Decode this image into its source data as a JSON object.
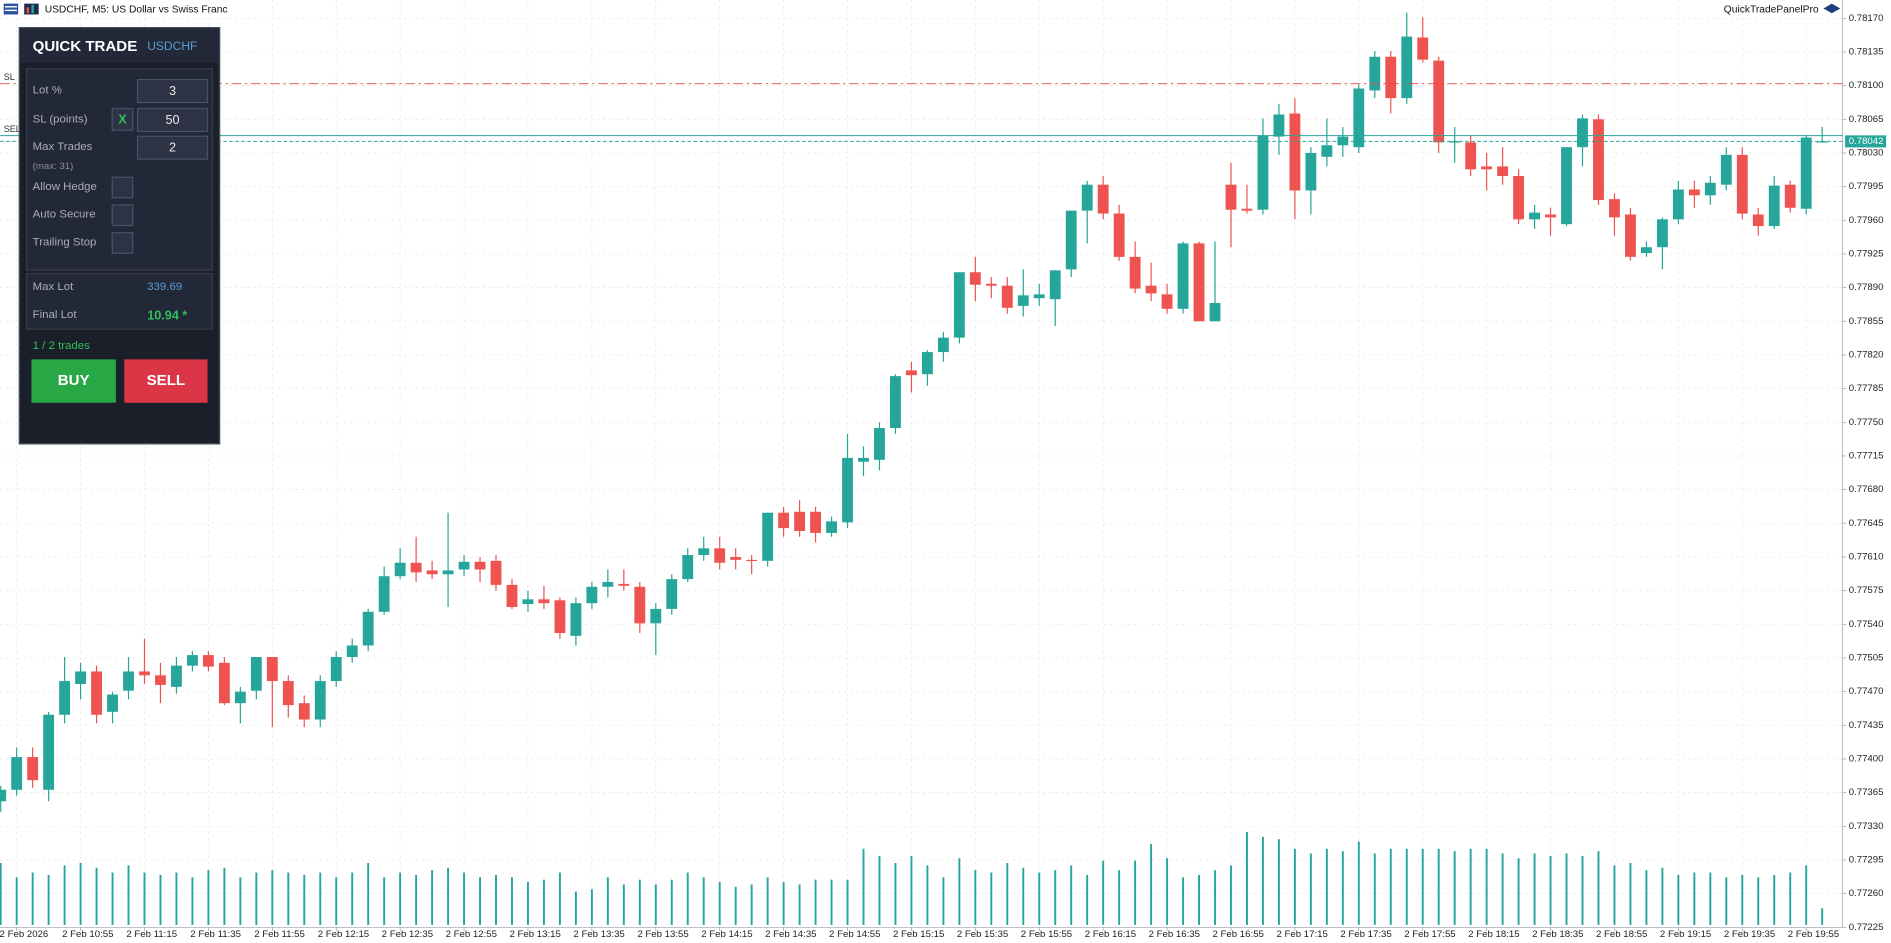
{
  "header": {
    "title": "USDCHF, M5:  US Dollar vs Swiss Franc",
    "brand": "QuickTradePanelPro"
  },
  "panel": {
    "title": "QUICK TRADE",
    "symbol": "USDCHF",
    "fields": [
      {
        "label": "Lot %",
        "value": "3"
      },
      {
        "label": "SL (points)",
        "toggle": "X",
        "value": "50"
      },
      {
        "label": "Max Trades",
        "value": "2",
        "note": "(max: 31)"
      }
    ],
    "checkboxes": [
      "Allow Hedge",
      "Auto Secure",
      "Trailing Stop"
    ],
    "stats": [
      {
        "label": "Max Lot",
        "value": "339.69"
      },
      {
        "label": "Final Lot",
        "value": "10.94 *"
      }
    ],
    "status": "1 / 2 trades",
    "buttons": [
      "BUY",
      "SELL"
    ]
  },
  "chart_data": {
    "type": "candlestick",
    "up_color": "#26a69a",
    "down_color": "#ef5350",
    "volume_color": "#26a69a",
    "grid": true,
    "ylim": [
      0.77225,
      0.78189
    ],
    "yticks": [
      {
        "value": 0.7817,
        "label": "0.78170"
      },
      0.78135,
      {
        "value": 0.781,
        "label": "0.78100"
      },
      0.78065,
      {
        "value": 0.7803,
        "label": "0.78030"
      },
      0.77995,
      {
        "value": 0.7796,
        "label": "0.77960"
      },
      0.77925,
      {
        "value": 0.7789,
        "label": "0.77890"
      },
      0.77855,
      {
        "value": 0.7782,
        "label": "0.77820"
      },
      0.77785,
      {
        "value": 0.7775,
        "label": "0.77750"
      },
      0.77715,
      {
        "value": 0.7768,
        "label": "0.77680"
      },
      0.77645,
      {
        "value": 0.7761,
        "label": "0.77610"
      },
      0.77575,
      {
        "value": 0.7754,
        "label": "0.77540"
      },
      0.77505,
      {
        "value": 0.7747,
        "label": "0.77470"
      },
      0.77435,
      {
        "value": 0.774,
        "label": "0.77400"
      },
      0.77365,
      {
        "value": 0.7733,
        "label": "0.77330"
      },
      0.77295,
      {
        "value": 0.7726,
        "label": "0.77260"
      },
      0.77225
    ],
    "categories": [
      null,
      "2 Feb 2026",
      null,
      null,
      null,
      "2 Feb 10:55",
      null,
      null,
      null,
      "2 Feb 11:15",
      null,
      null,
      null,
      "2 Feb 11:35",
      null,
      null,
      null,
      "2 Feb 11:55",
      null,
      null,
      null,
      "2 Feb 12:15",
      null,
      null,
      null,
      "2 Feb 12:35",
      null,
      null,
      null,
      "2 Feb 12:55",
      null,
      null,
      null,
      "2 Feb 13:15",
      null,
      null,
      null,
      "2 Feb 13:35",
      null,
      null,
      null,
      "2 Feb 13:55",
      null,
      null,
      null,
      "2 Feb 14:15",
      null,
      null,
      null,
      "2 Feb 14:35",
      null,
      null,
      null,
      "2 Feb 14:55",
      null,
      null,
      null,
      "2 Feb 15:15",
      null,
      null,
      null,
      "2 Feb 15:35",
      null,
      null,
      null,
      "2 Feb 15:55",
      null,
      null,
      null,
      "2 Feb 16:15",
      null,
      null,
      null,
      "2 Feb 16:35",
      null,
      null,
      null,
      "2 Feb 16:55",
      null,
      null,
      null,
      "2 Feb 17:15",
      null,
      null,
      null,
      "2 Feb 17:35",
      null,
      null,
      null,
      "2 Feb 17:55",
      null,
      null,
      null,
      "2 Feb 18:15",
      null,
      null,
      null,
      "2 Feb 18:35",
      null,
      null,
      null,
      "2 Feb 18:55",
      null,
      null,
      null,
      "2 Feb 19:15",
      null,
      null,
      null,
      "2 Feb 19:35",
      null,
      null,
      null,
      "2 Feb 19:55",
      null
    ],
    "open": [
      0.77356,
      0.77368,
      0.77402,
      0.77368,
      0.77446,
      0.77478,
      0.77491,
      0.77449,
      0.77471,
      0.77491,
      0.77487,
      0.77475,
      0.77497,
      0.77508,
      0.775,
      0.77458,
      0.77471,
      0.77506,
      0.77481,
      0.77458,
      0.77441,
      0.77481,
      0.77506,
      0.77518,
      0.77553,
      0.7759,
      0.77604,
      0.77596,
      0.77592,
      0.77597,
      0.77605,
      0.77606,
      0.77581,
      0.77561,
      0.77566,
      0.77565,
      0.77528,
      0.77562,
      0.77579,
      0.77582,
      0.77579,
      0.77541,
      0.77556,
      0.77587,
      0.77612,
      0.77619,
      0.7761,
      0.77607,
      0.77606,
      0.77656,
      0.77657,
      0.77657,
      0.77635,
      0.77646,
      0.77709,
      0.77711,
      0.77744,
      0.77804,
      0.778,
      0.77823,
      0.77838,
      0.77906,
      0.77894,
      0.77892,
      0.77871,
      0.77879,
      0.77878,
      0.77909,
      0.7797,
      0.77997,
      0.77967,
      0.77922,
      0.77892,
      0.77883,
      0.77868,
      0.77936,
      0.77855,
      0.77997,
      0.77972,
      0.77971,
      0.78047,
      0.78071,
      0.77991,
      0.78026,
      0.78038,
      0.78036,
      0.78095,
      0.7813,
      0.78087,
      0.7815,
      0.78126,
      0.78041,
      0.78041,
      0.78016,
      0.78016,
      0.78006,
      0.77961,
      0.77966,
      0.77956,
      0.78036,
      0.78065,
      0.77982,
      0.77966,
      0.77926,
      0.77932,
      0.77961,
      0.77992,
      0.77986,
      0.77997,
      0.78028,
      0.77966,
      0.77954,
      0.77997,
      0.77972,
      0.78041
    ],
    "high": [
      0.77372,
      0.77412,
      0.77412,
      0.77449,
      0.77506,
      0.775,
      0.77497,
      0.7747,
      0.77506,
      0.77525,
      0.775,
      0.77506,
      0.77512,
      0.77512,
      0.77506,
      0.77475,
      0.77506,
      0.77506,
      0.77487,
      0.77466,
      0.77487,
      0.77512,
      0.77525,
      0.77556,
      0.776,
      0.77619,
      0.77631,
      0.77606,
      0.77656,
      0.77612,
      0.7761,
      0.77612,
      0.77587,
      0.77575,
      0.7758,
      0.77568,
      0.77568,
      0.77584,
      0.77597,
      0.77597,
      0.77584,
      0.77562,
      0.77592,
      0.77619,
      0.77631,
      0.77631,
      0.77619,
      0.77612,
      0.77656,
      0.77662,
      0.77669,
      0.77662,
      0.77652,
      0.77738,
      0.77725,
      0.7775,
      0.778,
      0.77813,
      0.77825,
      0.77844,
      0.77906,
      0.77922,
      0.77901,
      0.77901,
      0.77909,
      0.77894,
      0.77908,
      0.7797,
      0.78001,
      0.78006,
      0.77976,
      0.77938,
      0.77916,
      0.77894,
      0.77938,
      0.77938,
      0.77938,
      0.7802,
      0.77997,
      0.78066,
      0.78081,
      0.78087,
      0.78036,
      0.78066,
      0.78057,
      0.78101,
      0.78136,
      0.78136,
      0.78176,
      0.78171,
      0.7813,
      0.78057,
      0.78048,
      0.7803,
      0.78036,
      0.78013,
      0.77976,
      0.77973,
      0.78036,
      0.7807,
      0.7807,
      0.77988,
      0.77973,
      0.77938,
      0.77963,
      0.78001,
      0.78001,
      0.78006,
      0.78036,
      0.78036,
      0.77973,
      0.78006,
      0.78001,
      0.78048,
      0.78057
    ],
    "low": [
      0.77345,
      0.77362,
      0.7737,
      0.77356,
      0.77437,
      0.77462,
      0.77437,
      0.77437,
      0.77462,
      0.77478,
      0.77458,
      0.77468,
      0.77491,
      0.77491,
      0.77456,
      0.77437,
      0.77462,
      0.77433,
      0.77443,
      0.77433,
      0.77433,
      0.77475,
      0.775,
      0.77512,
      0.7755,
      0.77587,
      0.77584,
      0.77587,
      0.77558,
      0.7759,
      0.77584,
      0.77575,
      0.77556,
      0.77553,
      0.77556,
      0.77525,
      0.77518,
      0.77556,
      0.77568,
      0.77575,
      0.77531,
      0.77508,
      0.7755,
      0.77584,
      0.77606,
      0.77597,
      0.77597,
      0.77592,
      0.776,
      0.77631,
      0.77631,
      0.77625,
      0.77631,
      0.7764,
      0.77694,
      0.777,
      0.77738,
      0.77781,
      0.77788,
      0.77813,
      0.77832,
      0.77876,
      0.77879,
      0.77863,
      0.7786,
      0.77871,
      0.7785,
      0.77901,
      0.77936,
      0.77961,
      0.77918,
      0.77884,
      0.77876,
      0.77863,
      0.77863,
      0.77855,
      0.77855,
      0.77932,
      0.77967,
      0.77966,
      0.78028,
      0.77961,
      0.77966,
      0.78016,
      0.78026,
      0.7803,
      0.78087,
      0.78071,
      0.78081,
      0.78124,
      0.7803,
      0.7802,
      0.78006,
      0.77991,
      0.77997,
      0.77956,
      0.77951,
      0.77944,
      0.77954,
      0.78016,
      0.77976,
      0.77944,
      0.77918,
      0.77922,
      0.77909,
      0.77956,
      0.77973,
      0.77976,
      0.77991,
      0.77961,
      0.77944,
      0.77951,
      0.77968,
      0.77966,
      0.78041
    ],
    "close": [
      0.77368,
      0.77402,
      0.77378,
      0.77446,
      0.77481,
      0.77491,
      0.77446,
      0.77467,
      0.77491,
      0.77487,
      0.77477,
      0.77497,
      0.77508,
      0.77496,
      0.77458,
      0.7747,
      0.77506,
      0.77481,
      0.77456,
      0.77441,
      0.77481,
      0.77506,
      0.77518,
      0.77553,
      0.7759,
      0.77604,
      0.77594,
      0.77592,
      0.77596,
      0.77605,
      0.77597,
      0.77581,
      0.77558,
      0.77566,
      0.77562,
      0.77531,
      0.77562,
      0.77579,
      0.77584,
      0.7758,
      0.77541,
      0.77556,
      0.77587,
      0.77612,
      0.77619,
      0.77604,
      0.77607,
      0.77606,
      0.77656,
      0.7764,
      0.77637,
      0.77635,
      0.77647,
      0.77713,
      0.77713,
      0.77744,
      0.77798,
      0.77799,
      0.77823,
      0.77838,
      0.77906,
      0.77893,
      0.77892,
      0.77869,
      0.77882,
      0.77883,
      0.77908,
      0.7797,
      0.77997,
      0.77967,
      0.77922,
      0.77889,
      0.77884,
      0.77868,
      0.77936,
      0.77855,
      0.77874,
      0.77971,
      0.7797,
      0.78048,
      0.7807,
      0.77991,
      0.7803,
      0.78038,
      0.78047,
      0.78097,
      0.7813,
      0.78087,
      0.78151,
      0.78127,
      0.78041,
      0.78042,
      0.78013,
      0.78013,
      0.78006,
      0.77961,
      0.77968,
      0.77963,
      0.78036,
      0.78066,
      0.77981,
      0.77963,
      0.77922,
      0.77932,
      0.77961,
      0.77992,
      0.77986,
      0.77999,
      0.78028,
      0.77967,
      0.77954,
      0.77996,
      0.77973,
      0.78046,
      0.78042
    ],
    "volume": [
      52,
      40,
      44,
      42,
      50,
      52,
      48,
      44,
      50,
      44,
      42,
      44,
      40,
      46,
      48,
      40,
      44,
      46,
      44,
      42,
      44,
      40,
      44,
      52,
      40,
      44,
      42,
      46,
      48,
      44,
      40,
      42,
      40,
      36,
      38,
      44,
      28,
      30,
      40,
      34,
      38,
      34,
      38,
      44,
      40,
      36,
      32,
      34,
      40,
      36,
      34,
      38,
      38,
      38,
      64,
      58,
      52,
      58,
      50,
      40,
      56,
      46,
      44,
      52,
      48,
      44,
      46,
      50,
      42,
      54,
      46,
      54,
      68,
      56,
      40,
      42,
      46,
      50,
      78,
      74,
      72,
      64,
      60,
      64,
      62,
      70,
      60,
      64,
      64,
      64,
      64,
      62,
      64,
      64,
      60,
      56,
      60,
      58,
      60,
      58,
      62,
      50,
      52,
      46,
      48,
      42,
      44,
      44,
      40,
      42,
      40,
      42,
      44,
      50,
      14
    ],
    "price_lines": [
      {
        "label": "SL",
        "value": 0.78102,
        "color": "#e04848"
      },
      {
        "label": "SELL",
        "value": 0.78048,
        "color": "#26a69a"
      }
    ],
    "bid": 0.78042,
    "bid_color": "#26a69a"
  }
}
